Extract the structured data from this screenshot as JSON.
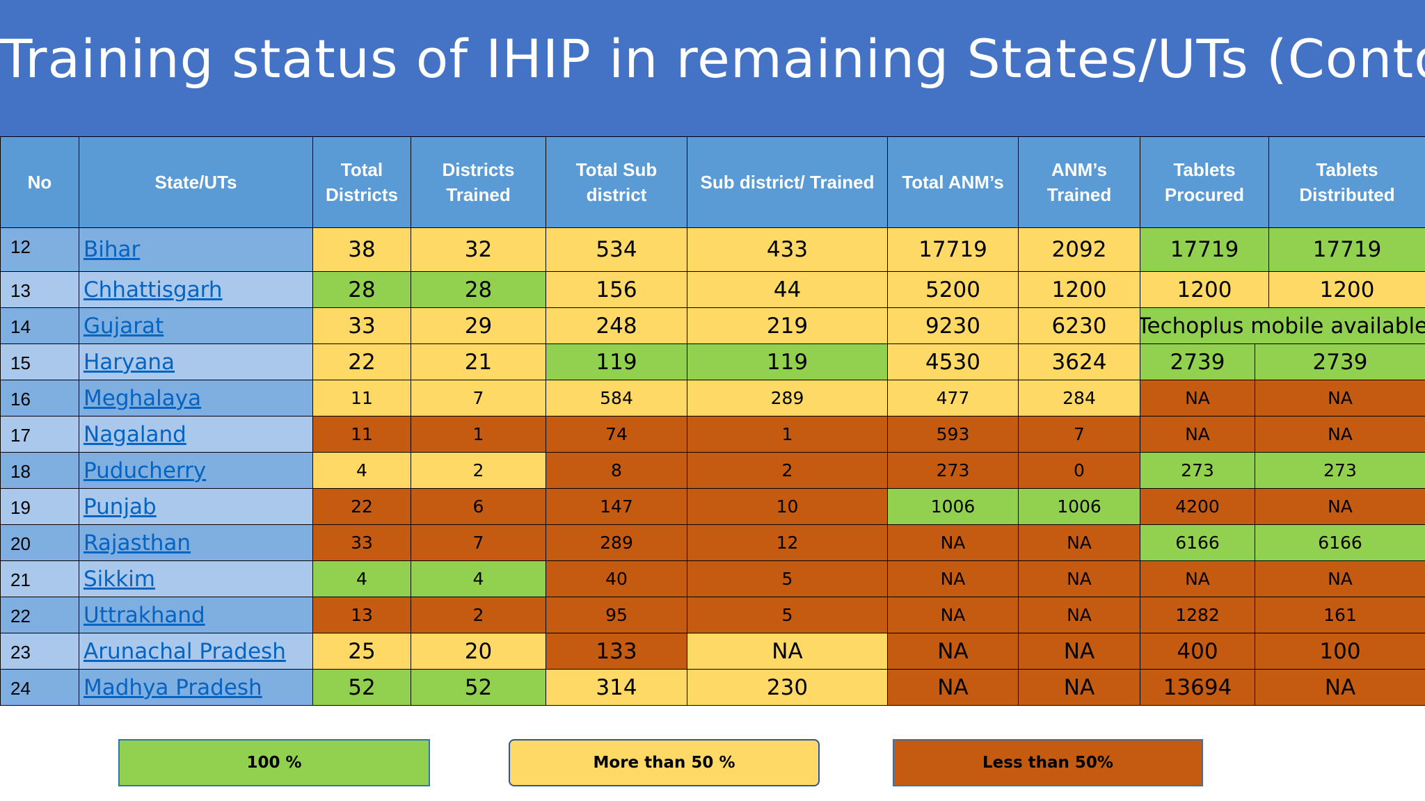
{
  "title": "Training status of IHIP in remaining States/UTs (Contd.)",
  "table": {
    "headers": [
      "No",
      "State/UTs",
      "Total Districts",
      "Districts Trained",
      "Total Sub district",
      "Sub district/ Trained",
      "Total ANM’s",
      "ANM’s Trained",
      "Tablets Procured",
      "Tablets Distributed"
    ],
    "rows": [
      {
        "no": "12",
        "state": "Bihar",
        "total_districts": "38",
        "districts_trained": "32",
        "total_sub_district": "534",
        "sub_district_trained": "433",
        "total_anm": "17719",
        "anm_trained": "2092",
        "tablets_procured": "17719",
        "tablets_distributed": "17719"
      },
      {
        "no": "13",
        "state": "Chhattisgarh",
        "total_districts": "28",
        "districts_trained": "28",
        "total_sub_district": "156",
        "sub_district_trained": "44",
        "total_anm": "5200",
        "anm_trained": "1200",
        "tablets_procured": "1200",
        "tablets_distributed": "1200"
      },
      {
        "no": "14",
        "state": "Gujarat",
        "total_districts": "33",
        "districts_trained": "29",
        "total_sub_district": "248",
        "sub_district_trained": "219",
        "total_anm": "9230",
        "anm_trained": "6230",
        "tablets_note": "Techoplus mobile available"
      },
      {
        "no": "15",
        "state": "Haryana",
        "total_districts": "22",
        "districts_trained": "21",
        "total_sub_district": "119",
        "sub_district_trained": "119",
        "total_anm": "4530",
        "anm_trained": "3624",
        "tablets_procured": "2739",
        "tablets_distributed": "2739"
      },
      {
        "no": "16",
        "state": "Meghalaya",
        "total_districts": "11",
        "districts_trained": "7",
        "total_sub_district": "584",
        "sub_district_trained": "289",
        "total_anm": "477",
        "anm_trained": "284",
        "tablets_procured": "NA",
        "tablets_distributed": "NA"
      },
      {
        "no": "17",
        "state": "Nagaland",
        "total_districts": "11",
        "districts_trained": "1",
        "total_sub_district": "74",
        "sub_district_trained": "1",
        "total_anm": "593",
        "anm_trained": "7",
        "tablets_procured": "NA",
        "tablets_distributed": "NA"
      },
      {
        "no": "18",
        "state": "Puducherry",
        "total_districts": "4",
        "districts_trained": "2",
        "total_sub_district": "8",
        "sub_district_trained": "2",
        "total_anm": "273",
        "anm_trained": "0",
        "tablets_procured": "273",
        "tablets_distributed": "273"
      },
      {
        "no": "19",
        "state": "Punjab",
        "total_districts": "22",
        "districts_trained": "6",
        "total_sub_district": "147",
        "sub_district_trained": "10",
        "total_anm": "1006",
        "anm_trained": "1006",
        "tablets_procured": "4200",
        "tablets_distributed": "NA"
      },
      {
        "no": "20",
        "state": "Rajasthan",
        "total_districts": "33",
        "districts_trained": "7",
        "total_sub_district": "289",
        "sub_district_trained": "12",
        "total_anm": "NA",
        "anm_trained": "NA",
        "tablets_procured": "6166",
        "tablets_distributed": "6166"
      },
      {
        "no": "21",
        "state": "Sikkim",
        "total_districts": "4",
        "districts_trained": "4",
        "total_sub_district": "40",
        "sub_district_trained": "5",
        "total_anm": "NA",
        "anm_trained": "NA",
        "tablets_procured": "NA",
        "tablets_distributed": "NA"
      },
      {
        "no": "22",
        "state": "Uttrakhand",
        "total_districts": "13",
        "districts_trained": "2",
        "total_sub_district": "95",
        "sub_district_trained": "5",
        "total_anm": "NA",
        "anm_trained": "NA",
        "tablets_procured": "1282",
        "tablets_distributed": "161"
      },
      {
        "no": "23",
        "state": "Arunachal Pradesh",
        "total_districts": "25",
        "districts_trained": "20",
        "total_sub_district": "133",
        "sub_district_trained": "NA",
        "total_anm": "NA",
        "anm_trained": "NA",
        "tablets_procured": "400",
        "tablets_distributed": "100"
      },
      {
        "no": "24",
        "state": "Madhya Pradesh",
        "total_districts": "52",
        "districts_trained": "52",
        "total_sub_district": "314",
        "sub_district_trained": "230",
        "total_anm": "NA",
        "anm_trained": "NA",
        "tablets_procured": "13694",
        "tablets_distributed": "NA"
      }
    ],
    "cell_status": [
      [
        "y",
        "y",
        "y",
        "y",
        "y",
        "y",
        "g",
        "g"
      ],
      [
        "g",
        "g",
        "y",
        "y",
        "y",
        "y",
        "y",
        "y"
      ],
      [
        "y",
        "y",
        "y",
        "y",
        "y",
        "y",
        "g"
      ],
      [
        "y",
        "y",
        "g",
        "g",
        "y",
        "y",
        "g",
        "g"
      ],
      [
        "y",
        "y",
        "y",
        "y",
        "y",
        "y",
        "o",
        "o"
      ],
      [
        "o",
        "o",
        "o",
        "o",
        "o",
        "o",
        "o",
        "o"
      ],
      [
        "y",
        "y",
        "o",
        "o",
        "o",
        "o",
        "g",
        "g"
      ],
      [
        "o",
        "o",
        "o",
        "o",
        "g",
        "g",
        "o",
        "o"
      ],
      [
        "o",
        "o",
        "o",
        "o",
        "o",
        "o",
        "g",
        "g"
      ],
      [
        "g",
        "g",
        "o",
        "o",
        "o",
        "o",
        "o",
        "o"
      ],
      [
        "o",
        "o",
        "o",
        "o",
        "o",
        "o",
        "o",
        "o"
      ],
      [
        "y",
        "y",
        "o",
        "y",
        "o",
        "o",
        "o",
        "o"
      ],
      [
        "g",
        "g",
        "y",
        "y",
        "o",
        "o",
        "o",
        "o"
      ]
    ]
  },
  "legend": [
    {
      "label": "100 %",
      "color": "#92D050"
    },
    {
      "label": "More than 50 %",
      "color": "#FFD966"
    },
    {
      "label": "Less than 50%",
      "color": "#C55A11"
    }
  ],
  "colors": {
    "title_bg": "#4472C4",
    "header_bg": "#5B9BD5",
    "green": "#92D050",
    "yellow": "#FFD966",
    "orange": "#C55A11",
    "link": "#0563C1"
  }
}
